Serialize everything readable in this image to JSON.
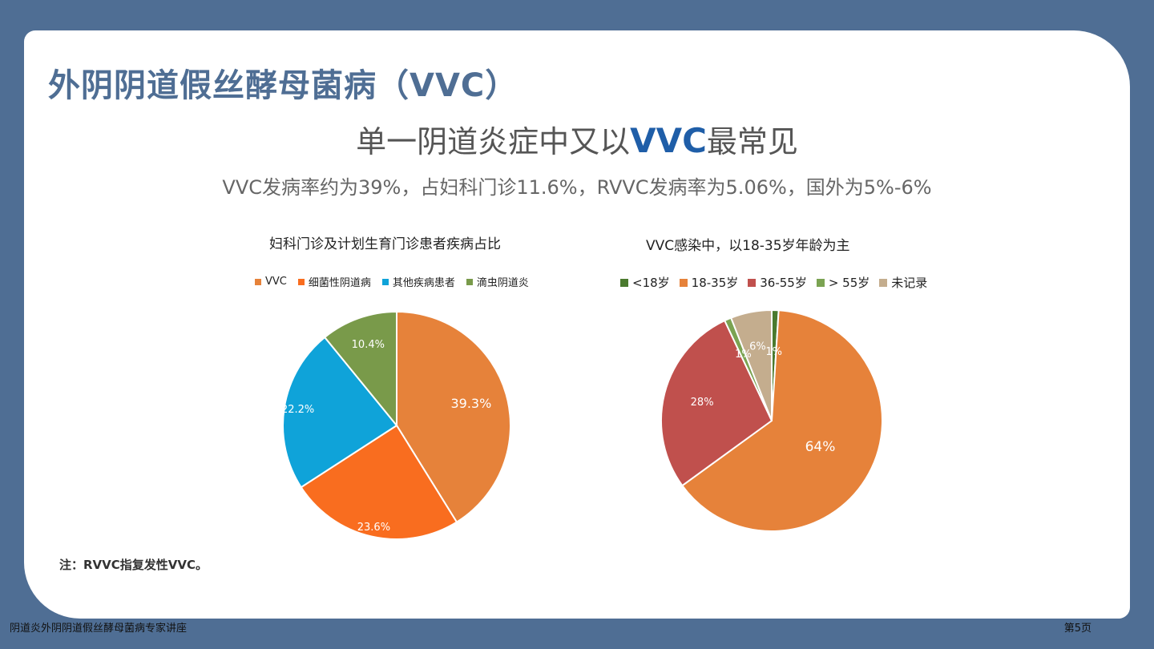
{
  "title": "外阴阴道假丝酵母菌病（VVC）",
  "headline": {
    "before": "单一阴道炎症中又以",
    "highlight": "VVC",
    "after": "最常见"
  },
  "subline": "VVC发病率约为39%，占妇科门诊11.6%，RVVC发病率为5.06%，国外为5%-6%",
  "note": "注：RVVC指复发性VVC。",
  "footer": {
    "left": "阴道炎外阴阴道假丝酵母菌病专家讲座",
    "right": "第5页"
  },
  "chart_data": [
    {
      "type": "pie",
      "title": "妇科门诊及计划生育门诊患者疾病占比",
      "legend_position": "top",
      "categories": [
        "VVC",
        "细菌性阴道病",
        "其他疾病患者",
        "滴虫阴道炎"
      ],
      "values": [
        39.3,
        23.6,
        22.2,
        10.4
      ],
      "labels": [
        "39.3%",
        "23.6%",
        "22.2%",
        "10.4%"
      ],
      "colors": [
        "#e6823a",
        "#f96d1f",
        "#0fa3d9",
        "#799a4a"
      ]
    },
    {
      "type": "pie",
      "title": "VVC感染中，以18-35岁年龄为主",
      "legend_position": "top",
      "categories": [
        "<18岁",
        "18-35岁",
        "36-55岁",
        "> 55岁",
        "未记录"
      ],
      "values": [
        1,
        64,
        28,
        1,
        6
      ],
      "labels": [
        "1%",
        "64%",
        "28%",
        "1%",
        "6%"
      ],
      "colors": [
        "#4a7a2e",
        "#e6823a",
        "#c0504d",
        "#7ba352",
        "#c4ad8e"
      ]
    }
  ]
}
